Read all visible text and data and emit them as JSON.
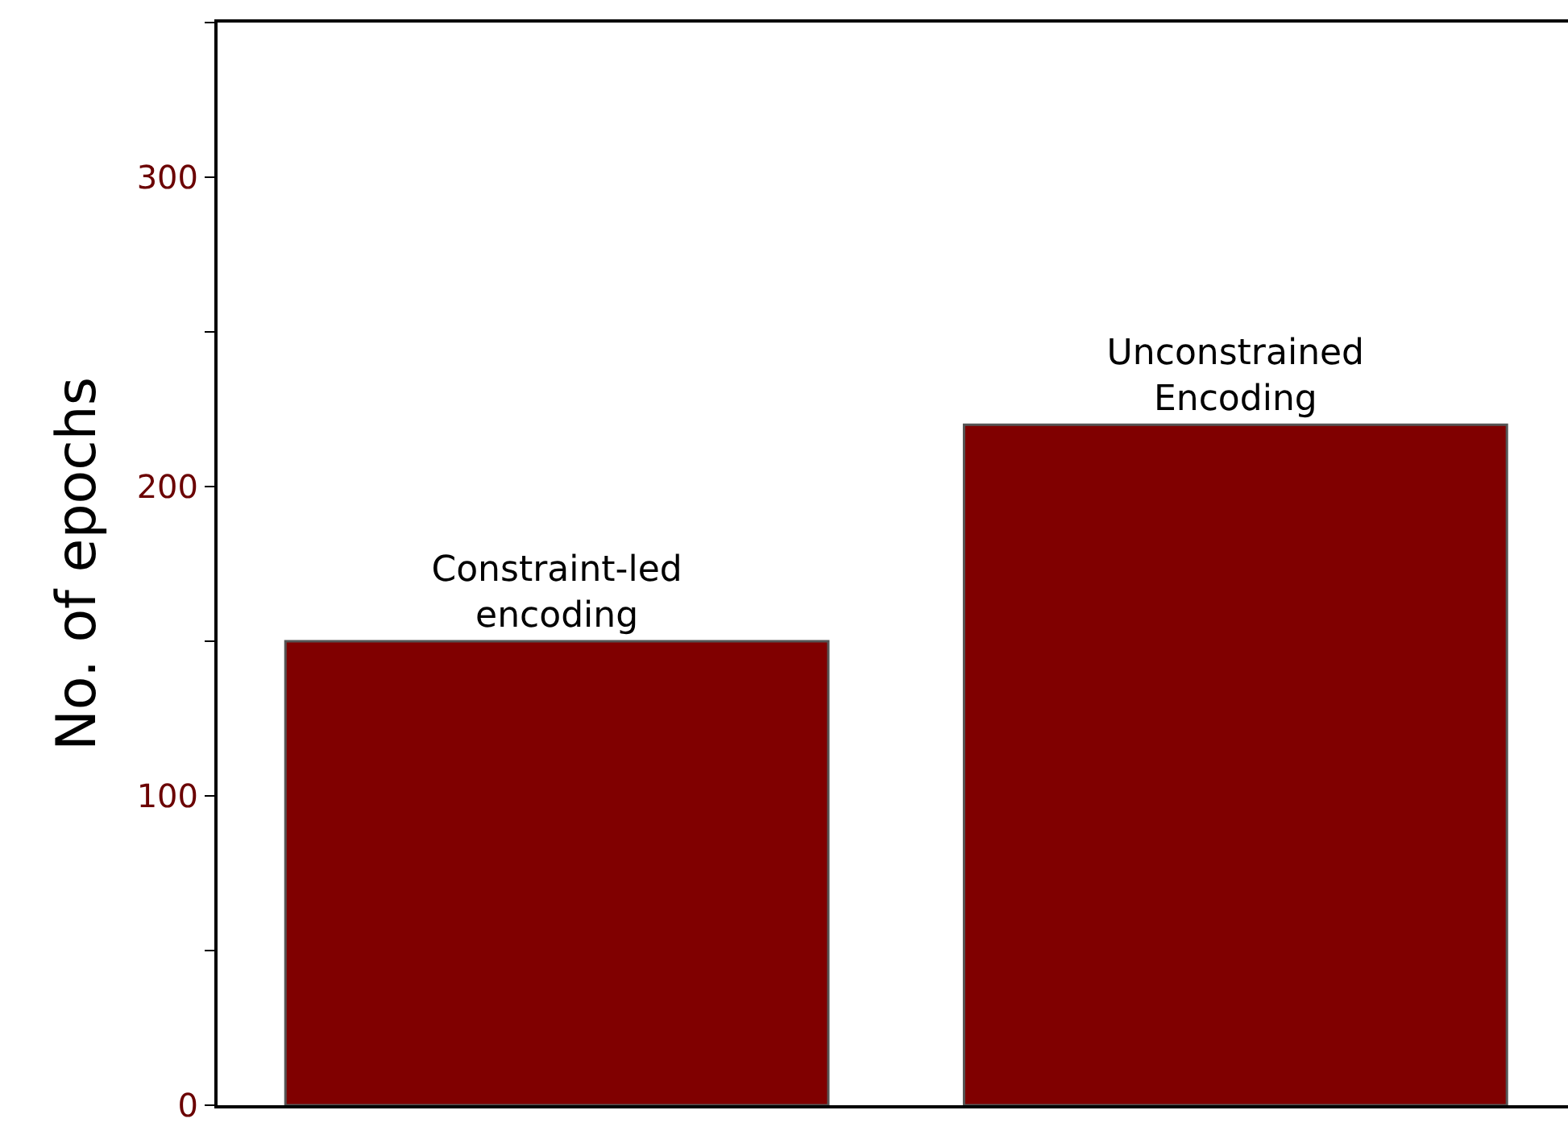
{
  "chart_data": {
    "type": "bar",
    "ylabel": "No. of epochs",
    "categories": [
      "Constraint-led encoding",
      "Unconstrained Encoding"
    ],
    "values": [
      150,
      220
    ],
    "color": "#800000",
    "ylim": [
      0,
      350
    ],
    "yticks": [
      0,
      {
        "value": 50,
        "label": null
      },
      100,
      {
        "value": 150,
        "label": null
      },
      200,
      {
        "value": 250,
        "label": null
      },
      300,
      {
        "value": 350,
        "label": null
      }
    ],
    "tick_labels": "y",
    "legend": false
  }
}
